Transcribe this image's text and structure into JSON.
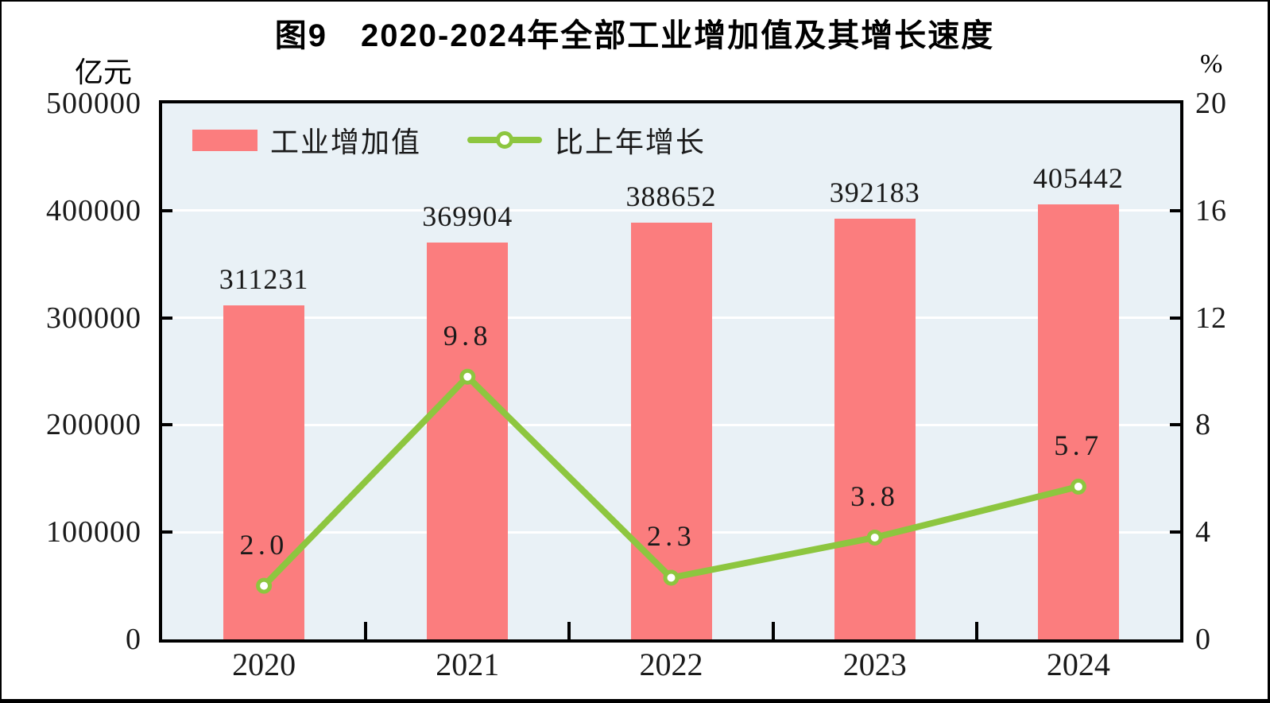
{
  "chart_data": {
    "type": "bar",
    "subtype": "bar+line-dual-axis",
    "title": "图9　2020-2024年全部工业增加值及其增长速度",
    "categories": [
      "2020",
      "2021",
      "2022",
      "2023",
      "2024"
    ],
    "series": [
      {
        "name": "工业增加值",
        "type": "bar",
        "axis": "left",
        "color": "#fb7d7e",
        "values": [
          311231,
          369904,
          388652,
          392183,
          405442
        ],
        "value_labels": [
          "311231",
          "369904",
          "388652",
          "392183",
          "405442"
        ]
      },
      {
        "name": "比上年增长",
        "type": "line",
        "axis": "right",
        "color": "#8dc63f",
        "marker": "circle",
        "marker_fill": "#ffffff",
        "values": [
          2.0,
          9.8,
          2.3,
          3.8,
          5.7
        ],
        "value_labels": [
          "2.0",
          "9.8",
          "2.3",
          "3.8",
          "5.7"
        ]
      }
    ],
    "left_axis": {
      "unit": "亿元",
      "min": 0,
      "max": 500000,
      "tick_step": 100000,
      "tick_labels": [
        "500000",
        "400000",
        "300000",
        "200000",
        "100000",
        "0"
      ]
    },
    "right_axis": {
      "unit": "%",
      "min": 0,
      "max": 20,
      "tick_step": 4,
      "tick_labels": [
        "20",
        "16",
        "12",
        "8",
        "4",
        "0"
      ]
    },
    "legend": {
      "position": "inside-top-left",
      "items": [
        "工业增加值",
        "比上年增长"
      ]
    },
    "grid": {
      "horizontal": true,
      "color": "#ffffff"
    },
    "plot_background": "#e9f1f6",
    "axis_color": "#000000"
  }
}
